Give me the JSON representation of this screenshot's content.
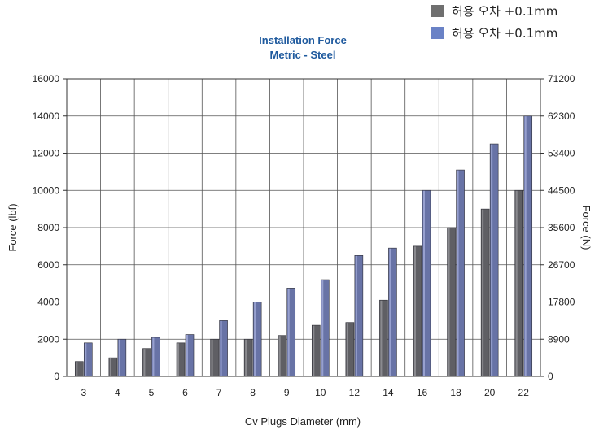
{
  "chart_data": {
    "type": "bar",
    "title": "Installation Force",
    "subtitle": "Metric -  Steel",
    "xlabel": "Cv Plugs Diameter (mm)",
    "ylabel": "Force (lbf)",
    "y2label": "Force (N)",
    "categories": [
      "3",
      "4",
      "5",
      "6",
      "7",
      "8",
      "9",
      "10",
      "12",
      "14",
      "16",
      "18",
      "20",
      "22"
    ],
    "series": [
      {
        "name": "허용 오차 +0.1mm",
        "color": "#5f5f64",
        "values": [
          800,
          1000,
          1500,
          1800,
          2000,
          2000,
          2200,
          2750,
          2900,
          4100,
          7000,
          8000,
          9000,
          10000
        ]
      },
      {
        "name": "허용 오차 +0.1mm",
        "color": "#6873a6",
        "values": [
          1800,
          2000,
          2100,
          2250,
          3000,
          4000,
          4750,
          5200,
          6500,
          6900,
          10000,
          11100,
          12500,
          14000
        ]
      }
    ],
    "ylim": [
      0,
      16000
    ],
    "yticks": [
      "0",
      "2000",
      "4000",
      "6000",
      "8000",
      "10000",
      "12000",
      "14000",
      "16000"
    ],
    "y2ticks": [
      "0",
      "8900",
      "17800",
      "26700",
      "35600",
      "44500",
      "53400",
      "62300",
      "71200"
    ],
    "grid": true,
    "legend_position": "top-right"
  },
  "legend": {
    "items": [
      {
        "label": "허용 오차 +0.1mm",
        "color": "#6f6f6f"
      },
      {
        "label": "허용 오차 +0.1mm",
        "color": "#6a82c6"
      }
    ]
  }
}
